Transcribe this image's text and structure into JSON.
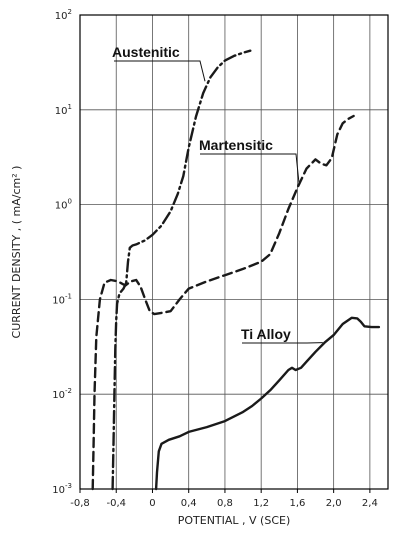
{
  "chart_data": {
    "type": "line",
    "xlabel": "POTENTIAL , V (SCE)",
    "ylabel": "CURRENT DENSITY , ( mA/cm² )",
    "xlim": [
      -0.8,
      2.6
    ],
    "ylim": [
      0.001,
      100
    ],
    "y_scale": "log",
    "grid": true,
    "x_ticks": [
      "-0,8",
      "-0,4",
      "0",
      "0,4",
      "0,8",
      "1,2",
      "1,6",
      "2,0",
      "2,4"
    ],
    "x_tick_values": [
      -0.8,
      -0.4,
      0,
      0.4,
      0.8,
      1.2,
      1.6,
      2.0,
      2.4
    ],
    "y_ticks": [
      {
        "base": "10",
        "exp": "-3",
        "value": 0.001
      },
      {
        "base": "10",
        "exp": "-2",
        "value": 0.01
      },
      {
        "base": "10",
        "exp": "-1",
        "value": 0.1
      },
      {
        "base": "10",
        "exp": "0",
        "value": 1
      },
      {
        "base": "10",
        "exp": "1",
        "value": 10
      },
      {
        "base": "10",
        "exp": "2",
        "value": 100
      }
    ],
    "series": [
      {
        "name": "Austenitic",
        "style": "dash-dot",
        "points": [
          [
            -0.44,
            0.001
          ],
          [
            -0.43,
            0.003
          ],
          [
            -0.42,
            0.01
          ],
          [
            -0.41,
            0.03
          ],
          [
            -0.4,
            0.06
          ],
          [
            -0.39,
            0.09
          ],
          [
            -0.37,
            0.11
          ],
          [
            -0.35,
            0.12
          ],
          [
            -0.32,
            0.13
          ],
          [
            -0.29,
            0.15
          ],
          [
            -0.27,
            0.25
          ],
          [
            -0.25,
            0.35
          ],
          [
            -0.22,
            0.37
          ],
          [
            -0.18,
            0.38
          ],
          [
            -0.13,
            0.4
          ],
          [
            -0.08,
            0.42
          ],
          [
            0.0,
            0.48
          ],
          [
            0.1,
            0.6
          ],
          [
            0.2,
            0.85
          ],
          [
            0.28,
            1.3
          ],
          [
            0.34,
            2.0
          ],
          [
            0.4,
            4.0
          ],
          [
            0.48,
            8.5
          ],
          [
            0.56,
            15
          ],
          [
            0.64,
            22
          ],
          [
            0.72,
            28
          ],
          [
            0.8,
            33
          ],
          [
            0.9,
            37
          ],
          [
            1.0,
            40
          ],
          [
            1.08,
            42
          ]
        ]
      },
      {
        "name": "Martensitic",
        "style": "dashed",
        "points": [
          [
            -0.66,
            0.001
          ],
          [
            -0.65,
            0.003
          ],
          [
            -0.64,
            0.01
          ],
          [
            -0.62,
            0.04
          ],
          [
            -0.58,
            0.1
          ],
          [
            -0.53,
            0.15
          ],
          [
            -0.46,
            0.16
          ],
          [
            -0.38,
            0.155
          ],
          [
            -0.3,
            0.14
          ],
          [
            -0.24,
            0.155
          ],
          [
            -0.18,
            0.16
          ],
          [
            -0.13,
            0.135
          ],
          [
            -0.08,
            0.1
          ],
          [
            -0.03,
            0.075
          ],
          [
            0.02,
            0.07
          ],
          [
            0.1,
            0.072
          ],
          [
            0.2,
            0.075
          ],
          [
            0.3,
            0.1
          ],
          [
            0.4,
            0.13
          ],
          [
            0.6,
            0.155
          ],
          [
            0.8,
            0.18
          ],
          [
            1.0,
            0.21
          ],
          [
            1.2,
            0.25
          ],
          [
            1.3,
            0.3
          ],
          [
            1.4,
            0.5
          ],
          [
            1.5,
            0.9
          ],
          [
            1.6,
            1.5
          ],
          [
            1.7,
            2.4
          ],
          [
            1.8,
            3.0
          ],
          [
            1.86,
            2.7
          ],
          [
            1.92,
            2.6
          ],
          [
            1.98,
            3.1
          ],
          [
            2.04,
            5.5
          ],
          [
            2.1,
            7.2
          ],
          [
            2.16,
            8.0
          ],
          [
            2.22,
            8.6
          ]
        ]
      },
      {
        "name": "Ti Alloy",
        "style": "solid",
        "points": [
          [
            0.04,
            0.001
          ],
          [
            0.05,
            0.0015
          ],
          [
            0.07,
            0.0025
          ],
          [
            0.1,
            0.003
          ],
          [
            0.18,
            0.0033
          ],
          [
            0.3,
            0.0036
          ],
          [
            0.4,
            0.004
          ],
          [
            0.6,
            0.0045
          ],
          [
            0.8,
            0.0052
          ],
          [
            1.0,
            0.0065
          ],
          [
            1.1,
            0.0075
          ],
          [
            1.2,
            0.009
          ],
          [
            1.3,
            0.011
          ],
          [
            1.4,
            0.014
          ],
          [
            1.5,
            0.018
          ],
          [
            1.54,
            0.019
          ],
          [
            1.58,
            0.018
          ],
          [
            1.64,
            0.019
          ],
          [
            1.7,
            0.022
          ],
          [
            1.8,
            0.028
          ],
          [
            1.9,
            0.035
          ],
          [
            2.0,
            0.042
          ],
          [
            2.1,
            0.055
          ],
          [
            2.2,
            0.064
          ],
          [
            2.26,
            0.063
          ],
          [
            2.3,
            0.058
          ],
          [
            2.34,
            0.052
          ],
          [
            2.42,
            0.051
          ],
          [
            2.5,
            0.051
          ]
        ]
      }
    ],
    "annotations": [
      {
        "text": "Austenitic",
        "series": "Austenitic",
        "anchor_data": [
          0.58,
          20
        ]
      },
      {
        "text": "Martensitic",
        "series": "Martensitic",
        "anchor_data": [
          1.62,
          1.6
        ]
      },
      {
        "text": "Ti Alloy",
        "series": "Ti Alloy",
        "anchor_data": [
          1.88,
          0.035
        ]
      }
    ]
  }
}
